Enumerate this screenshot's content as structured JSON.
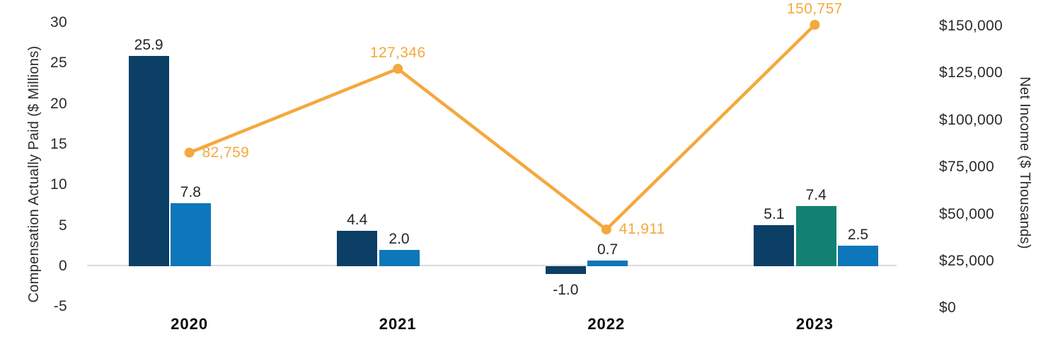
{
  "chart_data": {
    "type": "bar",
    "subtype": "clustered-column-with-line-overlay",
    "categories": [
      "2020",
      "2021",
      "2022",
      "2023"
    ],
    "series": [
      {
        "key": "navy",
        "name": "navy-bar-series",
        "type": "bar",
        "axis": "left",
        "color": "#0B3F65",
        "values": [
          25.9,
          4.4,
          -1.0,
          5.1
        ],
        "labels": [
          "25.9",
          "4.4",
          "-1.0",
          "5.1"
        ]
      },
      {
        "key": "teal",
        "name": "teal-bar-series",
        "type": "bar",
        "axis": "left",
        "color": "#128173",
        "values": [
          null,
          null,
          null,
          7.4
        ],
        "labels": [
          null,
          null,
          null,
          "7.4"
        ]
      },
      {
        "key": "blue",
        "name": "blue-bar-series",
        "type": "bar",
        "axis": "left",
        "color": "#0E76BA",
        "values": [
          7.8,
          2.0,
          0.7,
          2.5
        ],
        "labels": [
          "7.8",
          "2.0",
          "0.7",
          "2.5"
        ]
      },
      {
        "key": "net-income",
        "name": "orange-line-series",
        "type": "line",
        "axis": "right",
        "color": "#F5A83C",
        "values": [
          82759,
          127346,
          41911,
          150757
        ],
        "labels": [
          "82,759",
          "127,346",
          "41,911",
          "150,757"
        ],
        "label_placement": [
          "right",
          "above",
          "right",
          "above"
        ]
      }
    ],
    "left_axis": {
      "label": "Compensation Actually Paid ($ Millions)",
      "min": -5,
      "max": 30,
      "tick_step": 5,
      "ticks": [
        {
          "value": 30,
          "label": "30"
        },
        {
          "value": 25,
          "label": "25"
        },
        {
          "value": 20,
          "label": "20"
        },
        {
          "value": 15,
          "label": "15"
        },
        {
          "value": 10,
          "label": "10"
        },
        {
          "value": 5,
          "label": "5"
        },
        {
          "value": 0,
          "label": "0"
        },
        {
          "value": -5,
          "label": "-5"
        }
      ]
    },
    "right_axis": {
      "label": "Net Income ($ Thousands)",
      "min": 0,
      "max": 150000,
      "tick_step": 25000,
      "ticks": [
        {
          "value": 150000,
          "label": "$150,000"
        },
        {
          "value": 125000,
          "label": "$125,000"
        },
        {
          "value": 100000,
          "label": "$100,000"
        },
        {
          "value": 75000,
          "label": "$75,000"
        },
        {
          "value": 50000,
          "label": "$50,000"
        },
        {
          "value": 25000,
          "label": "$25,000"
        },
        {
          "value": 0,
          "label": "$0"
        }
      ]
    },
    "grid": "zero-baseline-only",
    "legend": "none",
    "background": "#FFFFFF",
    "text_color": "#2B2B2B",
    "baseline_color": "#DBDBDB"
  }
}
